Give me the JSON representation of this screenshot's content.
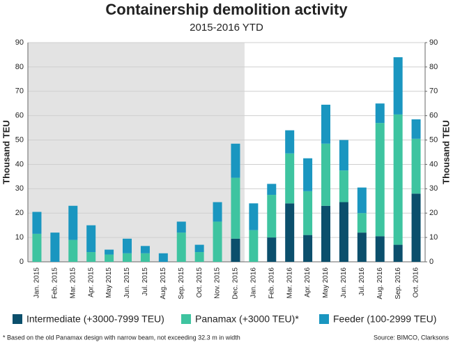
{
  "chart_data": {
    "type": "stacked_bar",
    "title": "Containership demolition activity",
    "subtitle": "2015-2016 YTD",
    "y_label": "Thousand TEU",
    "y2_label": "Thousand TEU",
    "categories": [
      "Jan. 2015",
      "Feb. 2015",
      "Mar. 2015",
      "Apr. 2015",
      "May 2015",
      "Jun. 2015",
      "Jul. 2015",
      "Aug. 2015",
      "Sep. 2015",
      "Oct. 2015",
      "Nov. 2015",
      "Dec. 2015",
      "Jan. 2016",
      "Feb. 2016",
      "Mar. 2016",
      "Apr. 2016",
      "May 2016",
      "Jun. 2016",
      "Jul. 2016",
      "Aug. 2016",
      "Sep. 2016",
      "Oct. 2016"
    ],
    "series": [
      {
        "name": "Intermediate (+3000-7999 TEU)",
        "color": "#0b4f6c",
        "values": [
          0,
          0,
          0,
          0,
          0,
          0,
          0,
          0,
          0,
          0,
          0,
          9.5,
          0,
          10,
          24,
          11,
          23,
          24.5,
          12,
          10.5,
          7,
          28
        ]
      },
      {
        "name": "Panamax (+3000 TEU)*",
        "color": "#3ec4a0",
        "values": [
          11.5,
          0,
          9,
          4,
          3,
          3.5,
          3.5,
          0,
          12,
          4,
          16.5,
          25,
          13,
          17.5,
          20.5,
          18,
          25.5,
          13,
          8,
          46.5,
          53.5,
          22.5
        ]
      },
      {
        "name": "Feeder (100-2999 TEU)",
        "color": "#1a96c0",
        "values": [
          9,
          12,
          14,
          11,
          2,
          6,
          3,
          3.5,
          4.5,
          3,
          8,
          14,
          11,
          4.5,
          9.5,
          13.5,
          16,
          12.5,
          10.5,
          8,
          23.5,
          8
        ]
      }
    ],
    "shaded_categories": 12,
    "ylim": [
      0,
      90
    ],
    "yticks": [
      0,
      10,
      20,
      30,
      40,
      50,
      60,
      70,
      80,
      90
    ],
    "y2lim": [
      0,
      90
    ],
    "y2ticks": [
      0,
      10,
      20,
      30,
      40,
      50,
      60,
      70,
      80,
      90
    ],
    "grid": true,
    "footnote": "* Based on the old Panamax design with narrow beam, not exceeding 32.3 m in width",
    "source": "Source: BIMCO, Clarksons"
  }
}
